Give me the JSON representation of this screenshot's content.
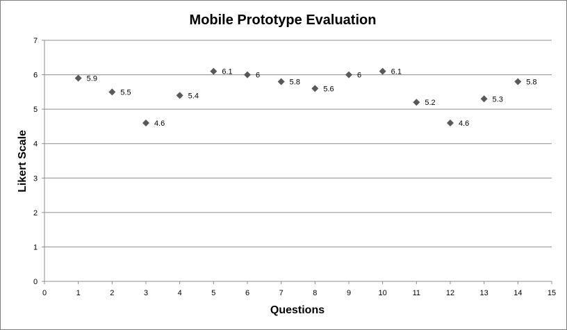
{
  "chart_data": {
    "type": "scatter",
    "title": "Mobile Prototype Evaluation",
    "xlabel": "Questions",
    "ylabel": "Likert Scale",
    "xlim": [
      0,
      15
    ],
    "ylim": [
      0,
      7
    ],
    "x_ticks": [
      0,
      1,
      2,
      3,
      4,
      5,
      6,
      7,
      8,
      9,
      10,
      11,
      12,
      13,
      14,
      15
    ],
    "y_ticks": [
      0,
      1,
      2,
      3,
      4,
      5,
      6,
      7
    ],
    "grid": "horizontal",
    "legend": "none",
    "marker": "diamond",
    "marker_color": "#595959",
    "series": [
      {
        "x": [
          1,
          2,
          3,
          4,
          5,
          6,
          7,
          8,
          9,
          10,
          11,
          12,
          13,
          14
        ],
        "y": [
          5.9,
          5.5,
          4.6,
          5.4,
          6.1,
          6,
          5.8,
          5.6,
          6,
          6.1,
          5.2,
          4.6,
          5.3,
          5.8
        ],
        "labels": [
          "5.9",
          "5.5",
          "4.6",
          "5.4",
          "6.1",
          "6",
          "5.8",
          "5.6",
          "6",
          "6.1",
          "5.2",
          "4.6",
          "5.3",
          "5.8"
        ]
      }
    ]
  }
}
